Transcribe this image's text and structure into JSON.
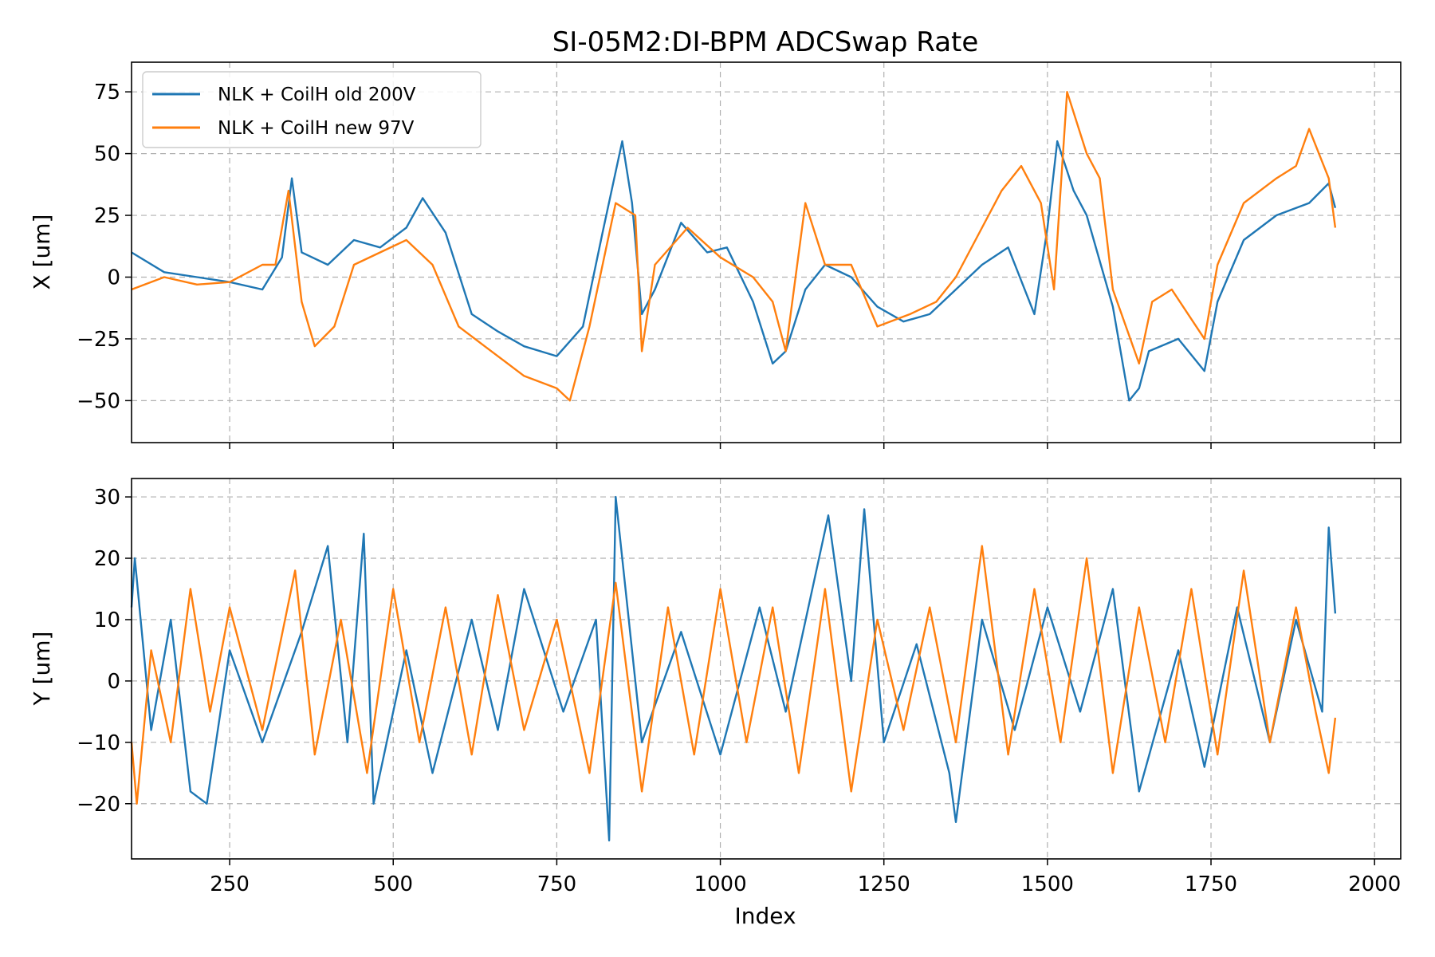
{
  "title": "SI-05M2:DI-BPM  ADCSwap Rate",
  "xlabel": "Index",
  "legend_location": "upper-left (top panel)",
  "colors": {
    "old": "#1f77b4",
    "new": "#ff7f0e",
    "grid": "#b0b0b0"
  },
  "chart_data": [
    {
      "type": "line",
      "panel": "top",
      "ylabel": "X [um]",
      "xlim": [
        100,
        2040
      ],
      "ylim": [
        -67,
        87
      ],
      "xticks": [
        250,
        500,
        750,
        1000,
        1250,
        1500,
        1750,
        2000
      ],
      "yticks": [
        -50,
        -25,
        0,
        25,
        50,
        75
      ],
      "ytick_labels": [
        "−50",
        "−25",
        "0",
        "25",
        "50",
        "75"
      ],
      "grid": true,
      "series": [
        {
          "name": "NLK + CoilH old 200V",
          "color": "#1f77b4",
          "x": [
            100,
            150,
            200,
            250,
            300,
            330,
            345,
            360,
            400,
            440,
            480,
            520,
            545,
            580,
            620,
            660,
            700,
            750,
            790,
            820,
            850,
            865,
            880,
            900,
            940,
            980,
            1010,
            1050,
            1080,
            1100,
            1130,
            1160,
            1200,
            1240,
            1280,
            1320,
            1360,
            1400,
            1440,
            1480,
            1500,
            1515,
            1540,
            1560,
            1600,
            1625,
            1640,
            1655,
            1700,
            1740,
            1760,
            1800,
            1850,
            1900,
            1930,
            1940
          ],
          "y": [
            10,
            2,
            0,
            -2,
            -5,
            8,
            40,
            10,
            5,
            15,
            12,
            20,
            32,
            18,
            -15,
            -22,
            -28,
            -32,
            -20,
            18,
            55,
            30,
            -15,
            -5,
            22,
            10,
            12,
            -10,
            -35,
            -30,
            -5,
            5,
            0,
            -12,
            -18,
            -15,
            -5,
            5,
            12,
            -15,
            20,
            55,
            35,
            25,
            -12,
            -50,
            -45,
            -30,
            -25,
            -38,
            -10,
            15,
            25,
            30,
            38,
            28
          ]
        },
        {
          "name": "NLK + CoilH new 97V",
          "color": "#ff7f0e",
          "x": [
            100,
            150,
            200,
            250,
            300,
            320,
            340,
            360,
            380,
            410,
            440,
            480,
            520,
            560,
            600,
            650,
            700,
            750,
            770,
            800,
            840,
            870,
            880,
            900,
            950,
            1000,
            1050,
            1080,
            1100,
            1130,
            1160,
            1200,
            1240,
            1290,
            1330,
            1360,
            1400,
            1430,
            1460,
            1490,
            1510,
            1530,
            1560,
            1580,
            1600,
            1640,
            1660,
            1690,
            1740,
            1760,
            1800,
            1850,
            1880,
            1900,
            1930,
            1940
          ],
          "y": [
            -5,
            0,
            -3,
            -2,
            5,
            5,
            35,
            -10,
            -28,
            -20,
            5,
            10,
            15,
            5,
            -20,
            -30,
            -40,
            -45,
            -50,
            -20,
            30,
            25,
            -30,
            5,
            20,
            8,
            0,
            -10,
            -30,
            30,
            5,
            5,
            -20,
            -15,
            -10,
            0,
            20,
            35,
            45,
            30,
            -5,
            75,
            50,
            40,
            -5,
            -35,
            -10,
            -5,
            -25,
            5,
            30,
            40,
            45,
            60,
            40,
            20
          ]
        }
      ]
    },
    {
      "type": "line",
      "panel": "bottom",
      "ylabel": "Y [um]",
      "xlim": [
        100,
        2040
      ],
      "ylim": [
        -29,
        33
      ],
      "xticks": [
        250,
        500,
        750,
        1000,
        1250,
        1500,
        1750,
        2000
      ],
      "xtick_labels": [
        "250",
        "500",
        "750",
        "1000",
        "1250",
        "1500",
        "1750",
        "2000"
      ],
      "yticks": [
        -20,
        -10,
        0,
        10,
        20,
        30
      ],
      "ytick_labels": [
        "−20",
        "−10",
        "0",
        "10",
        "20",
        "30"
      ],
      "grid": true,
      "series": [
        {
          "name": "NLK + CoilH old 200V",
          "color": "#1f77b4",
          "x": [
            100,
            105,
            130,
            160,
            190,
            215,
            250,
            300,
            360,
            400,
            430,
            455,
            470,
            520,
            560,
            620,
            660,
            700,
            760,
            810,
            830,
            840,
            880,
            940,
            1000,
            1060,
            1100,
            1165,
            1200,
            1220,
            1250,
            1300,
            1350,
            1360,
            1400,
            1450,
            1500,
            1550,
            1600,
            1640,
            1700,
            1740,
            1790,
            1840,
            1880,
            1920,
            1930,
            1940
          ],
          "y": [
            12,
            20,
            -8,
            10,
            -18,
            -20,
            5,
            -10,
            8,
            22,
            -10,
            24,
            -20,
            5,
            -15,
            10,
            -8,
            15,
            -5,
            10,
            -26,
            30,
            -10,
            8,
            -12,
            12,
            -5,
            27,
            0,
            28,
            -10,
            6,
            -15,
            -23,
            10,
            -8,
            12,
            -5,
            15,
            -18,
            5,
            -14,
            12,
            -10,
            10,
            -5,
            25,
            11
          ]
        },
        {
          "name": "NLK + CoilH new 97V",
          "color": "#ff7f0e",
          "x": [
            100,
            108,
            130,
            160,
            190,
            220,
            250,
            300,
            350,
            380,
            420,
            460,
            500,
            540,
            580,
            620,
            660,
            700,
            750,
            800,
            840,
            880,
            920,
            960,
            1000,
            1040,
            1080,
            1120,
            1160,
            1200,
            1240,
            1280,
            1320,
            1360,
            1400,
            1440,
            1480,
            1520,
            1560,
            1600,
            1640,
            1680,
            1720,
            1760,
            1800,
            1840,
            1880,
            1910,
            1930,
            1940
          ],
          "y": [
            -10,
            -20,
            5,
            -10,
            15,
            -5,
            12,
            -8,
            18,
            -12,
            10,
            -15,
            15,
            -10,
            12,
            -12,
            14,
            -8,
            10,
            -15,
            16,
            -18,
            12,
            -12,
            15,
            -10,
            12,
            -15,
            15,
            -18,
            10,
            -8,
            12,
            -10,
            22,
            -12,
            15,
            -10,
            20,
            -15,
            12,
            -10,
            15,
            -12,
            18,
            -10,
            12,
            -5,
            -15,
            -6
          ]
        }
      ]
    }
  ]
}
